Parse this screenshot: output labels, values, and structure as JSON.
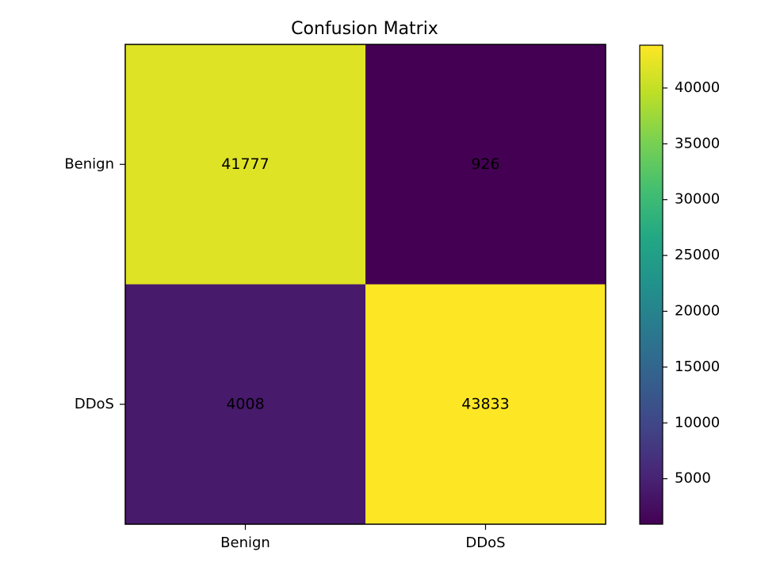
{
  "chart_data": {
    "type": "heatmap",
    "title": "Confusion Matrix",
    "xlabel": "",
    "ylabel": "",
    "row_labels": [
      "Benign",
      "DDoS"
    ],
    "col_labels": [
      "Benign",
      "DDoS"
    ],
    "values": [
      [
        41777,
        926
      ],
      [
        4008,
        43833
      ]
    ],
    "colormap": "viridis",
    "colorbar": {
      "vmin": 926,
      "vmax": 43833,
      "ticks": [
        5000,
        10000,
        15000,
        20000,
        25000,
        30000,
        35000,
        40000
      ],
      "tick_labels": [
        "5000",
        "10000",
        "15000",
        "20000",
        "25000",
        "30000",
        "35000",
        "40000"
      ]
    },
    "grid": false
  }
}
